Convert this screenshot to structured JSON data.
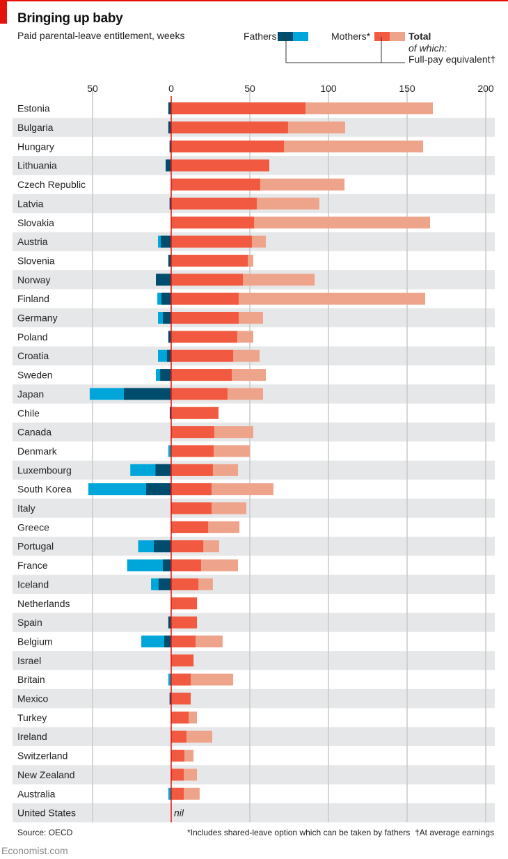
{
  "title": "Bringing up baby",
  "subtitle": "Paid parental-leave entitlement, weeks",
  "legend": {
    "fathers": "Fathers",
    "mothers": "Mothers*",
    "total": "Total",
    "of_which": "of which:",
    "full_pay": "Full-pay equivalent†"
  },
  "colors": {
    "fathers_full": "#004c6d",
    "fathers_total": "#00a6d9",
    "mothers_full": "#f15a40",
    "mothers_total": "#eea48b",
    "zero_line": "#e3120b",
    "band": "#e6e7e8",
    "grid": "#c8c8c8"
  },
  "source": "Source: OECD",
  "note_mothers": "*Includes shared-leave option which can be taken by fathers",
  "note_fullpay": "†At average earnings",
  "brand": "Economist.com",
  "nil_label": "nil",
  "chart_data": {
    "type": "bar",
    "orientation": "horizontal-diverging",
    "unit": "weeks",
    "xlim": [
      -55,
      205
    ],
    "grid": true,
    "ticks": [
      {
        "value": -50,
        "label": "50"
      },
      {
        "value": 0,
        "label": "0"
      },
      {
        "value": 50,
        "label": "50"
      },
      {
        "value": 100,
        "label": "100"
      },
      {
        "value": 150,
        "label": "150"
      },
      {
        "value": 200,
        "label": "200"
      }
    ],
    "categories": [
      "Estonia",
      "Bulgaria",
      "Hungary",
      "Lithuania",
      "Czech Republic",
      "Latvia",
      "Slovakia",
      "Austria",
      "Slovenia",
      "Norway",
      "Finland",
      "Germany",
      "Poland",
      "Croatia",
      "Sweden",
      "Japan",
      "Chile",
      "Canada",
      "Denmark",
      "Luxembourg",
      "South Korea",
      "Italy",
      "Greece",
      "Portugal",
      "France",
      "Iceland",
      "Netherlands",
      "Spain",
      "Belgium",
      "Israel",
      "Britain",
      "Mexico",
      "Turkey",
      "Ireland",
      "Switzerland",
      "New Zealand",
      "Australia",
      "United States"
    ],
    "series": [
      {
        "name": "Mothers total",
        "values": [
          166.4,
          110.6,
          160.2,
          62.4,
          110.2,
          94.2,
          164.6,
          60.2,
          52.2,
          91.2,
          161.5,
          58.4,
          52.2,
          56.2,
          60.2,
          58.4,
          30.1,
          52.2,
          50,
          42.5,
          65,
          47.8,
          43.4,
          30.5,
          42.5,
          26.5,
          16.4,
          16.4,
          32.7,
          14.2,
          39.4,
          12.4,
          16.4,
          26.1,
          14.2,
          16.4,
          18.1,
          0
        ]
      },
      {
        "name": "Mothers full-pay equivalent",
        "values": [
          85.4,
          74.3,
          71.7,
          62.4,
          56.6,
          54.4,
          52.7,
          51.3,
          48.7,
          45.6,
          42.9,
          42.9,
          42,
          39.4,
          38.5,
          35.8,
          30.1,
          27.4,
          27,
          26.5,
          25.7,
          25.7,
          23.5,
          20.4,
          19,
          17.3,
          16.4,
          16.4,
          15.5,
          14.2,
          12.4,
          12.4,
          11.1,
          9.7,
          8.4,
          8,
          8,
          0
        ]
      },
      {
        "name": "Fathers total",
        "values": [
          1.8,
          1.8,
          1,
          3.5,
          0,
          1,
          0,
          8.4,
          1.8,
          9.7,
          8.8,
          8.4,
          1.8,
          8.4,
          9.7,
          51.8,
          0.9,
          0,
          1.8,
          26,
          52.7,
          0,
          0,
          21,
          28,
          12.8,
          0,
          1.8,
          19,
          0,
          1.8,
          1,
          0,
          0,
          0,
          0,
          1.8,
          0
        ]
      },
      {
        "name": "Fathers full-pay equivalent",
        "values": [
          1.8,
          1.8,
          1,
          3.5,
          0,
          1,
          0,
          6.6,
          1.8,
          9.7,
          6.2,
          5.3,
          1.8,
          2.7,
          7,
          30.1,
          0.9,
          0,
          0.4,
          10,
          15.9,
          0,
          0,
          11,
          5.3,
          8,
          0,
          1.8,
          4.4,
          0,
          0.4,
          1,
          0,
          0,
          0,
          0,
          0.4,
          0
        ]
      }
    ]
  }
}
